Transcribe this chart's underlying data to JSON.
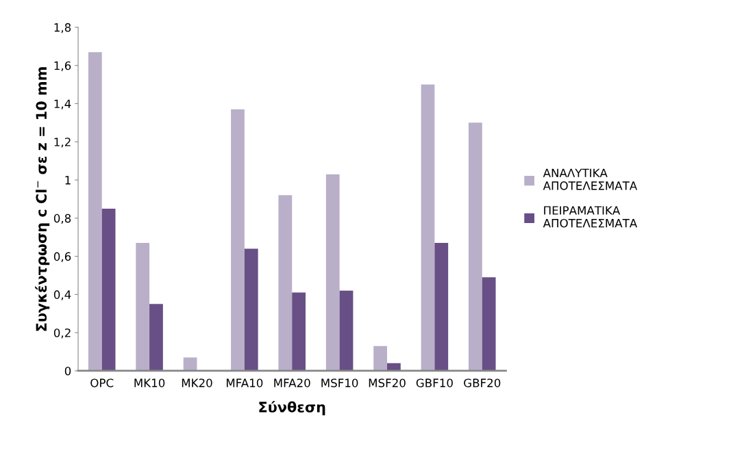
{
  "chart_data": {
    "type": "bar",
    "xlabel": "Σύνθεση",
    "ylabel": "Συγκέντρωση c Cl$^{−}$ σε z = 10 mm",
    "categories": [
      "OPC",
      "MK10",
      "MK20",
      "MFA10",
      "MFA20",
      "MSF10",
      "MSF20",
      "GBF10",
      "GBF20"
    ],
    "series": [
      {
        "name": "ΑΝΑΛΥΤΙΚΑ ΑΠΟΤΕΛΕΣΜΑΤΑ",
        "color": "#b9afc9",
        "values": [
          1.67,
          0.67,
          0.07,
          1.37,
          0.92,
          1.03,
          0.13,
          1.5,
          1.3
        ]
      },
      {
        "name": "ΠΕΙΡΑΜΑΤΙΚΑ ΑΠΟΤΕΛΕΣΜΑΤΑ",
        "color": "#684f86",
        "values": [
          0.85,
          0.35,
          0,
          0.64,
          0.41,
          0.42,
          0.04,
          0.67,
          0.49
        ]
      }
    ],
    "ylim": [
      0,
      1.8
    ],
    "yticks": [
      0,
      {
        "value": 0.2,
        "label": "0,2"
      },
      {
        "value": 0.4,
        "label": "0,4"
      },
      {
        "value": 0.6,
        "label": "0,6"
      },
      {
        "value": 0.8,
        "label": "0,8"
      },
      1,
      {
        "value": 1.2,
        "label": "1,2"
      },
      {
        "value": 1.4,
        "label": "1,4"
      },
      {
        "value": 1.6,
        "label": "1,6"
      },
      {
        "value": 1.8,
        "label": "1,8"
      }
    ],
    "grid": false,
    "legend": "right"
  }
}
